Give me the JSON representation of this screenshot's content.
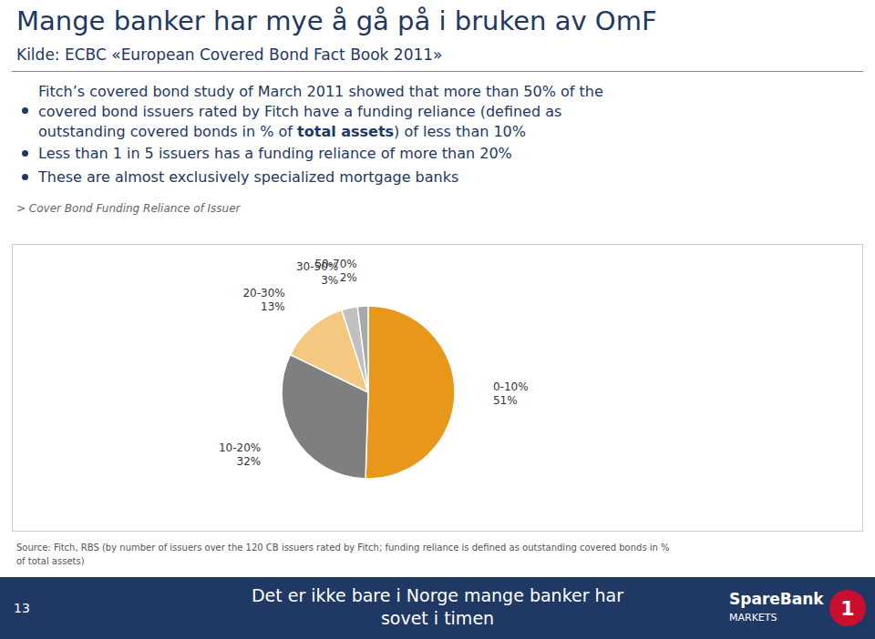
{
  "chart_data": {
    "type": "pie",
    "title": "Mange banker har mye å gå på i bruken av OmF",
    "subtitle": "Kilde: ECBC «European Covered Bond Fact Book 2011»",
    "categories": [
      "0-10%",
      "10-20%",
      "20-30%",
      "30-50%",
      "50-70%"
    ],
    "values": [
      51,
      32,
      13,
      3,
      2
    ],
    "value_labels": [
      "51%",
      "32%",
      "13%",
      "3%",
      "2%"
    ],
    "colors": [
      "#E8971A",
      "#7F7F7F",
      "#F5C882",
      "#C0C0C0",
      "#A8A8A8"
    ],
    "data_labels": true,
    "annotations": [
      "Fitch’s covered bond study of March 2011 showed that more than 50% of the\ncovered bond issuers rated by Fitch have a funding reliance (defined as\noutstanding covered bonds in % of ",
      "total assets",
      ") of less than 10%",
      "Less than 1 in 5 issuers has a funding reliance of more than 20%",
      "These are almost exclusively specialized mortgage banks",
      "> Cover Bond Funding Reliance of Issuer",
      "Source: Fitch, RBS (by number of issuers over the 120 CB issuers rated by Fitch; funding reliance is defined as outstanding covered bonds in %\nof total assets)",
      "Det er ikke bare i Norge mange banker har",
      "sovet i timen",
      "13",
      "SpareBank",
      "MARKETS",
      "1"
    ]
  }
}
